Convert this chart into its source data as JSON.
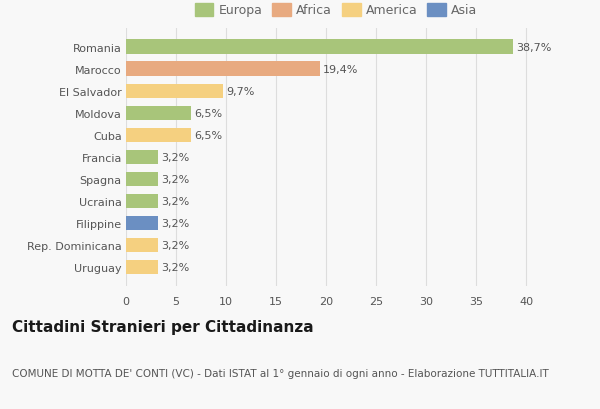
{
  "categories": [
    "Romania",
    "Marocco",
    "El Salvador",
    "Moldova",
    "Cuba",
    "Francia",
    "Spagna",
    "Ucraina",
    "Filippine",
    "Rep. Dominicana",
    "Uruguay"
  ],
  "values": [
    38.7,
    19.4,
    9.7,
    6.5,
    6.5,
    3.2,
    3.2,
    3.2,
    3.2,
    3.2,
    3.2
  ],
  "labels": [
    "38,7%",
    "19,4%",
    "9,7%",
    "6,5%",
    "6,5%",
    "3,2%",
    "3,2%",
    "3,2%",
    "3,2%",
    "3,2%",
    "3,2%"
  ],
  "bar_colors": [
    "#a8c57a",
    "#e8aa80",
    "#f5d080",
    "#a8c57a",
    "#f5d080",
    "#a8c57a",
    "#a8c57a",
    "#a8c57a",
    "#6b8fc2",
    "#f5d080",
    "#f5d080"
  ],
  "legend_labels": [
    "Europa",
    "Africa",
    "America",
    "Asia"
  ],
  "legend_colors": [
    "#a8c57a",
    "#e8aa80",
    "#f5d080",
    "#6b8fc2"
  ],
  "title": "Cittadini Stranieri per Cittadinanza",
  "subtitle": "COMUNE DI MOTTA DE' CONTI (VC) - Dati ISTAT al 1° gennaio di ogni anno - Elaborazione TUTTITALIA.IT",
  "xlim": [
    0,
    42
  ],
  "xticks": [
    0,
    5,
    10,
    15,
    20,
    25,
    30,
    35,
    40
  ],
  "background_color": "#f8f8f8",
  "grid_color": "#dddddd",
  "title_fontsize": 11,
  "subtitle_fontsize": 7.5,
  "label_fontsize": 8,
  "tick_fontsize": 8,
  "legend_fontsize": 9
}
